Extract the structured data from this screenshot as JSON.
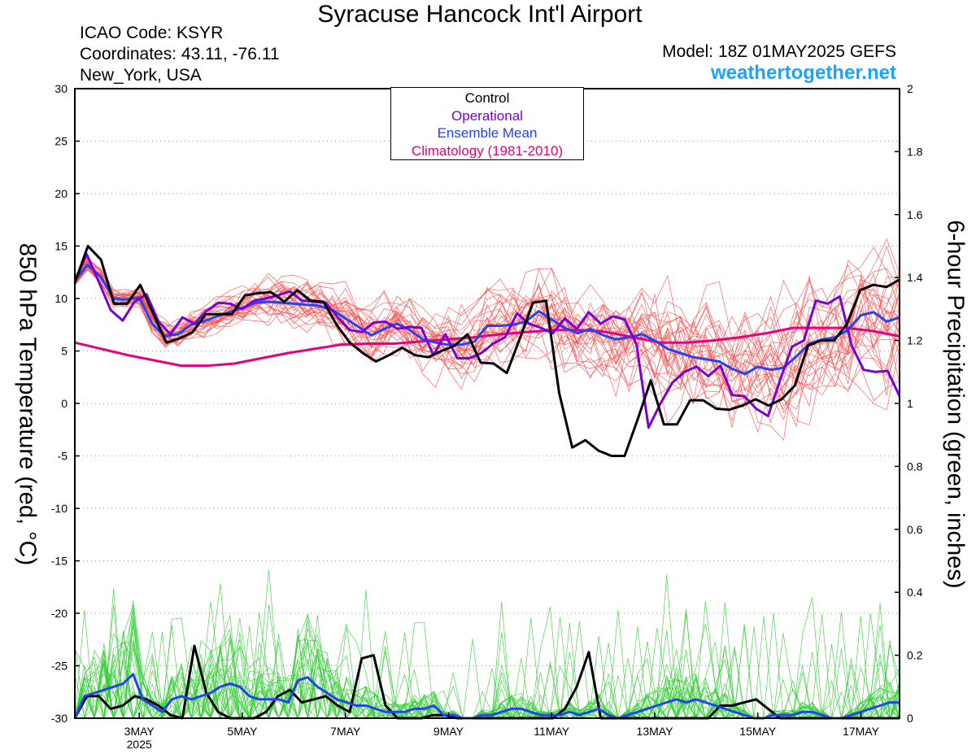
{
  "header": {
    "title": "Syracuse Hancock Int'l Airport",
    "icao": "ICAO Code: KSYR",
    "coordinates": "Coordinates: 43.11, -76.11",
    "location": "New_York, USA",
    "model": "Model: 18Z 01MAY2025 GEFS",
    "brand": "weathertogether.net"
  },
  "legend": {
    "control": "Control",
    "operational": "Operational",
    "ensemble_mean": "Ensemble Mean",
    "climatology": "Climatology (1981-2010)"
  },
  "colors": {
    "control": "#000000",
    "operational": "#7b00d6",
    "ensemble_mean": "#2244ee",
    "climatology": "#e6007e",
    "temp_members": "#ff4a4a",
    "precip_members": "#33cc33",
    "brand": "#1aa3ff"
  },
  "chart_data": {
    "type": "line",
    "ylabel": "850 hPa Temperature (red, °C)",
    "y2label": "6-hour Precipitation (green, inches)",
    "ylim": [
      -30,
      30
    ],
    "y2lim": [
      0,
      2
    ],
    "yticks": [
      30,
      25,
      20,
      15,
      10,
      5,
      0,
      -5,
      -10,
      -15,
      -20,
      -25,
      -30
    ],
    "y2ticks": [
      "2",
      "1.8",
      "1.6",
      "1.4",
      "1.2",
      "1",
      "0.8",
      "0.6",
      "0.4",
      "0.2",
      "0"
    ],
    "x_start": "2025-05-01T18:00Z",
    "x_end": "2025-05-17T18:00Z",
    "xticks": [
      {
        "date": "2025-05-03",
        "label": "3MAY",
        "sub": "2025"
      },
      {
        "date": "2025-05-05",
        "label": "5MAY"
      },
      {
        "date": "2025-05-07",
        "label": "7MAY"
      },
      {
        "date": "2025-05-09",
        "label": "9MAY"
      },
      {
        "date": "2025-05-11",
        "label": "11MAY"
      },
      {
        "date": "2025-05-13",
        "label": "13MAY"
      },
      {
        "date": "2025-05-15",
        "label": "15MAY"
      },
      {
        "date": "2025-05-17",
        "label": "17MAY"
      }
    ],
    "grid": true,
    "legend_position": "top-center",
    "temperature_series": [
      {
        "name": "Control",
        "values": [
          11.5,
          15,
          13.7,
          9.5,
          9.5,
          11.3,
          8.5,
          5.8,
          6.2,
          6.8,
          8.5,
          8.5,
          8.5,
          10.3,
          10.5,
          10.6,
          9.7,
          10.8,
          9.8,
          9.7,
          7.5,
          5.8,
          4.8,
          4,
          4.6,
          5.3,
          4.6,
          4.4,
          5,
          5.5,
          6.6,
          3.9,
          3.8,
          2.9,
          6.2,
          9.6,
          9.8,
          1,
          -4.2,
          -3.5,
          -4.5,
          -5,
          -5,
          -1.5,
          2.2,
          -2,
          -2,
          0.3,
          0.3,
          -0.5,
          -0.6,
          -0.2,
          0.4,
          -0.2,
          0.4,
          1.7,
          5.5,
          6,
          6,
          7.6,
          10.8,
          11.3,
          11.1,
          11.8
        ]
      },
      {
        "name": "Operational",
        "values": [
          11.7,
          14.2,
          11.6,
          8.9,
          7.9,
          9.7,
          10.4,
          7.8,
          6.6,
          8.2,
          7.6,
          8.8,
          9.6,
          9.5,
          9,
          9.8,
          10,
          10.3,
          10.7,
          9.8,
          9.7,
          9.6,
          8.2,
          7,
          6.8,
          7.7,
          7.8,
          7.1,
          7.3,
          7.2,
          4.6,
          6.6,
          4.3,
          4.3,
          4.8,
          5.7,
          6.3,
          8.6,
          7.6,
          7.2,
          6.7,
          8.1,
          7.1,
          8.7,
          7.6,
          8.3,
          8,
          5.6,
          -2.3,
          0,
          2,
          3,
          3.5,
          2.6,
          3.6,
          0.8,
          0.7,
          -0.5,
          -1.2,
          2.2,
          5.4,
          6,
          9.8,
          9.5,
          10.2,
          5.5,
          3.2,
          3,
          3.1,
          0.7
        ]
      },
      {
        "name": "Ensemble Mean",
        "values": [
          11.7,
          13.2,
          12.1,
          10,
          9.9,
          10.1,
          7.6,
          6.4,
          6.6,
          7.5,
          7.8,
          8.3,
          8.7,
          9.1,
          9.6,
          9.7,
          9.6,
          9.5,
          9.4,
          9.3,
          8.9,
          8.1,
          7.3,
          6.5,
          7.1,
          7.6,
          7,
          6.1,
          5.8,
          5.6,
          5.6,
          5.9,
          7.4,
          7.4,
          7.5,
          7.8,
          8.8,
          8,
          7.2,
          6.7,
          7.1,
          6.5,
          6.1,
          6.3,
          6.6,
          6,
          5.2,
          4.8,
          4.4,
          4.2,
          4,
          3.3,
          2.8,
          3.5,
          3.2,
          3.4,
          4.5,
          5.7,
          6.1,
          6.3,
          7,
          8.4,
          8.7,
          7.8,
          8.2
        ]
      },
      {
        "name": "Climatology (1981-2010)",
        "values": [
          5.8,
          5.2,
          4.6,
          4.1,
          3.6,
          3.6,
          3.8,
          4.3,
          4.8,
          5.2,
          5.6,
          5.7,
          5.7,
          5.9,
          6.1,
          6.3,
          6.6,
          6.8,
          7,
          7,
          6.8,
          6.3,
          5.8,
          5.8,
          6,
          6.3,
          6.7,
          7.2,
          7.2,
          7.2,
          6.9,
          6.4
        ]
      }
    ],
    "precipitation_series": [
      {
        "name": "Control",
        "values": [
          0,
          0.07,
          0.07,
          0.03,
          0.04,
          0.07,
          0.06,
          0.04,
          0.01,
          0,
          0.23,
          0.08,
          0.02,
          0,
          0,
          0,
          0.02,
          0.07,
          0.09,
          0.05,
          0.06,
          0.07,
          0.04,
          0.02,
          0.19,
          0.2,
          0.04,
          0,
          0,
          0,
          0.01,
          0.01,
          0,
          0,
          0,
          0,
          0,
          0,
          0,
          0,
          0,
          0.03,
          0.1,
          0.21,
          0,
          0,
          0,
          0,
          0,
          0,
          0,
          0,
          0,
          0,
          0.04,
          0.04,
          0.05,
          0.06,
          0.03,
          0,
          0,
          0,
          0,
          0,
          0,
          0,
          0,
          0,
          0,
          0
        ]
      },
      {
        "name": "Ensemble Mean",
        "values": [
          0,
          0.07,
          0.08,
          0.09,
          0.1,
          0.11,
          0.14,
          0.06,
          0.04,
          0.02,
          0.06,
          0.07,
          0.06,
          0.07,
          0.08,
          0.1,
          0.11,
          0.1,
          0.07,
          0.06,
          0.06,
          0.06,
          0.05,
          0.12,
          0.13,
          0.1,
          0.08,
          0.06,
          0.05,
          0.04,
          0.04,
          0.03,
          0.02,
          0.02,
          0.02,
          0.03,
          0.03,
          0.04,
          0.01,
          0.01,
          0,
          0,
          0.01,
          0.01,
          0.02,
          0.03,
          0.03,
          0.02,
          0.01,
          0.01,
          0.01,
          0.02,
          0.01,
          0.02,
          0.03,
          0.01,
          0,
          0.01,
          0.02,
          0.03,
          0.04,
          0.05,
          0.06,
          0.05,
          0.06,
          0.05,
          0.04,
          0.03,
          0.02,
          0.01,
          0,
          0,
          0.01,
          0.01,
          0.01,
          0.02,
          0.02,
          0.01,
          0,
          0,
          0.01,
          0.02,
          0.03,
          0.04,
          0.05,
          0.05
        ]
      }
    ],
    "members": {
      "temperature_count": 30,
      "precipitation_count": 30
    }
  }
}
